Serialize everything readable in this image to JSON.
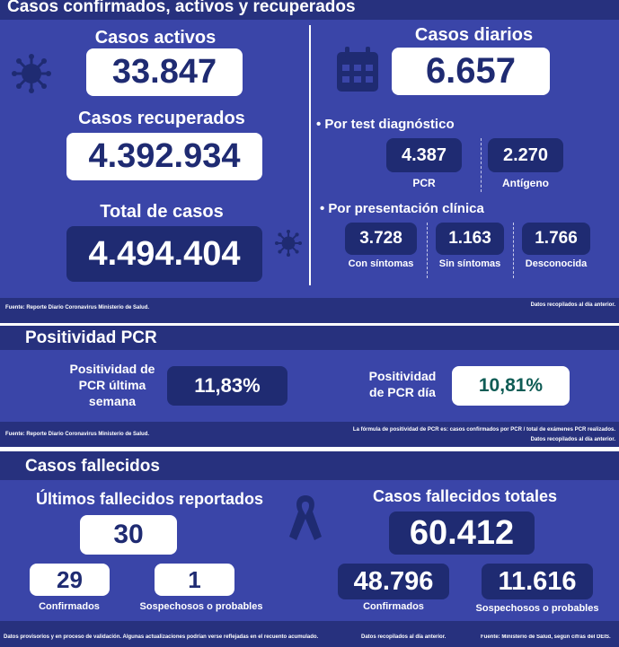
{
  "section1": {
    "title": "Casos confirmados, activos y recuperados",
    "activos_label": "Casos activos",
    "activos_value": "33.847",
    "recuperados_label": "Casos recuperados",
    "recuperados_value": "4.392.934",
    "total_label": "Total de casos",
    "total_value": "4.494.404",
    "diarios_label": "Casos diarios",
    "diarios_value": "6.657",
    "test_title": "• Por test diagnóstico",
    "pcr_value": "4.387",
    "pcr_label": "PCR",
    "antigeno_value": "2.270",
    "antigeno_label": "Antígeno",
    "clinica_title": "• Por presentación clínica",
    "con_sintomas_value": "3.728",
    "con_sintomas_label": "Con síntomas",
    "sin_sintomas_value": "1.163",
    "sin_sintomas_label": "Sin síntomas",
    "desconocida_value": "1.766",
    "desconocida_label": "Desconocida",
    "source": "Fuente: Reporte Diario Coronavirus Ministerio de Salud.",
    "note": "Datos recopilados al día anterior."
  },
  "section2": {
    "title": "Positividad PCR",
    "semana_label_1": "Positividad de",
    "semana_label_2": "PCR última",
    "semana_label_3": "semana",
    "semana_value": "11,83%",
    "dia_label_1": "Positividad",
    "dia_label_2": "de PCR día",
    "dia_value": "10,81%",
    "source": "Fuente: Reporte Diario Coronavirus Ministerio de Salud.",
    "formula": "La fórmula de positividad de PCR es: casos confirmados por PCR / total de exámenes PCR realizados.",
    "note": "Datos recopilados al día anterior."
  },
  "section3": {
    "title": "Casos fallecidos",
    "ultimos_label": "Últimos fallecidos reportados",
    "ultimos_value": "30",
    "confirmados_value": "29",
    "confirmados_label": "Confirmados",
    "sospechosos_value": "1",
    "sospechosos_label": "Sospechosos o probables",
    "totales_label": "Casos fallecidos totales",
    "totales_value": "60.412",
    "tot_confirmados_value": "48.796",
    "tot_confirmados_label": "Confirmados",
    "tot_sospechosos_value": "11.616",
    "tot_sospechosos_label": "Sospechosos o probables",
    "footer_1": "Datos provisorios y en proceso de validación. Algunas actualizaciones podrían verse reflejadas en el recuento acumulado.",
    "footer_2": "Datos recopilados al día anterior.",
    "footer_3": "Fuente: Ministerio de Salud, según cifras del DEIS."
  },
  "colors": {
    "background": "#3a45a8",
    "navy": "#1f2b72",
    "bar": "#27317e",
    "teal": "#0f5c55"
  },
  "icons": {
    "virus": "virus-icon",
    "calendar": "calendar-icon",
    "ribbon": "ribbon-icon"
  }
}
